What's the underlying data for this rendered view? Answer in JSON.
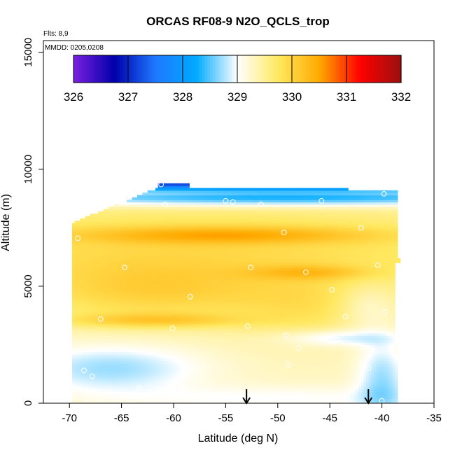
{
  "chart_data": {
    "type": "heatmap",
    "title": "ORCAS RF08-9 N2O_QCLS_trop",
    "annotations": [
      "Flts: 8,9",
      "MMDD: 0205,0208"
    ],
    "xlabel": "Latitude (deg N)",
    "ylabel": "Altitude (m)",
    "xlim": [
      -72.5,
      -35
    ],
    "ylim": [
      0,
      15500
    ],
    "x_ticks": [
      -70,
      -65,
      -60,
      -55,
      -50,
      -45,
      -40,
      -35
    ],
    "y_ticks": [
      0,
      5000,
      10000,
      15000
    ],
    "colorbar": {
      "min": 326,
      "max": 332,
      "ticks": [
        326,
        327,
        328,
        329,
        330,
        331,
        332
      ],
      "colors": [
        "#7b1fe0",
        "#0000aa",
        "#1e78ff",
        "#00aaff",
        "#ffffff",
        "#ffe860",
        "#ffaa00",
        "#ff0000",
        "#9a1010"
      ]
    },
    "arrow_markers_x": [
      -53,
      -41.3
    ],
    "profile_points": [
      {
        "x": -61.2,
        "y": 9350
      },
      {
        "x": -39.8,
        "y": 8950
      },
      {
        "x": -60.8,
        "y": 8500
      },
      {
        "x": -55.0,
        "y": 8650
      },
      {
        "x": -54.3,
        "y": 8600
      },
      {
        "x": -51.6,
        "y": 8500
      },
      {
        "x": -45.8,
        "y": 8650
      },
      {
        "x": -42.0,
        "y": 7500
      },
      {
        "x": -49.4,
        "y": 7300
      },
      {
        "x": -69.2,
        "y": 7050
      },
      {
        "x": -64.7,
        "y": 5800
      },
      {
        "x": -52.6,
        "y": 5800
      },
      {
        "x": -47.3,
        "y": 5600
      },
      {
        "x": -40.4,
        "y": 5900
      },
      {
        "x": -58.4,
        "y": 4550
      },
      {
        "x": -44.8,
        "y": 4850
      },
      {
        "x": -67.0,
        "y": 3600
      },
      {
        "x": -60.1,
        "y": 3200
      },
      {
        "x": -52.9,
        "y": 3300
      },
      {
        "x": -43.5,
        "y": 3700
      },
      {
        "x": -39.7,
        "y": 3900
      },
      {
        "x": -44.3,
        "y": 2700
      },
      {
        "x": -49.2,
        "y": 2900
      },
      {
        "x": -48.0,
        "y": 2350
      },
      {
        "x": -70.1,
        "y": 2050
      },
      {
        "x": -71.0,
        "y": 1400
      },
      {
        "x": -71.3,
        "y": 1200
      },
      {
        "x": -68.6,
        "y": 1400
      },
      {
        "x": -67.8,
        "y": 1150
      },
      {
        "x": -49.0,
        "y": 1650
      },
      {
        "x": -41.3,
        "y": 1500
      },
      {
        "x": -59.2,
        "y": 700
      },
      {
        "x": -63.3,
        "y": 650
      },
      {
        "x": -70.3,
        "y": 350
      },
      {
        "x": -68.2,
        "y": 200
      },
      {
        "x": -67.0,
        "y": 150
      },
      {
        "x": -48.5,
        "y": 100
      },
      {
        "x": -43.8,
        "y": 100
      },
      {
        "x": -40.0,
        "y": 100
      }
    ],
    "grid": false,
    "legend": "colorbar top"
  }
}
